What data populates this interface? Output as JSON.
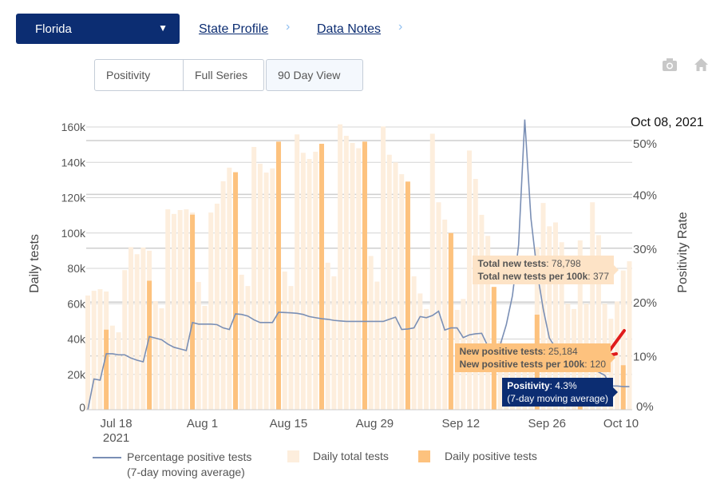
{
  "header": {
    "state_select": "Florida",
    "links": [
      "State Profile",
      "Data Notes"
    ],
    "view_buttons": [
      "Positivity",
      "Full Series",
      "90 Day View"
    ],
    "selected_view": "90 Day View",
    "icons": [
      "camera-icon",
      "home-icon"
    ]
  },
  "tooltip": {
    "date": "Oct 08, 2021",
    "total_label": "Total new tests",
    "total_value": "78,798",
    "total_100k_label": "Total new tests per 100k",
    "total_100k_value": "377",
    "pos_label": "New positive tests",
    "pos_value": "25,184",
    "pos_100k_label": "New positive tests per 100k",
    "pos_100k_value": "120",
    "positivity_label": "Positivity",
    "positivity_value": "4.3%",
    "positivity_note": "(7-day moving average)"
  },
  "colors": {
    "total": "#fdeedd",
    "positive": "#fdc27e",
    "line": "#7a8fb5",
    "brand": "#0c2d72",
    "arrow": "#e01b1b"
  },
  "chart_data": {
    "type": "bar+line",
    "start_date": "2021-07-13",
    "end_date": "2021-10-10",
    "xticks": [
      "Jul 18\n2021",
      "Aug 1",
      "Aug 15",
      "Aug 29",
      "Sep 12",
      "Sep 26",
      "Oct 10"
    ],
    "xtick_dates": [
      "2021-07-18",
      "2021-08-01",
      "2021-08-15",
      "2021-08-29",
      "2021-09-12",
      "2021-09-26",
      "2021-10-10"
    ],
    "ylabel": "Daily tests",
    "y2label": "Positivity Rate",
    "ylim": [
      0,
      160000
    ],
    "y2lim": [
      0,
      50
    ],
    "yticks": [
      "0",
      "20k",
      "40k",
      "60k",
      "80k",
      "100k",
      "120k",
      "140k",
      "160k"
    ],
    "y2ticks": [
      "0%",
      "10%",
      "20%",
      "30%",
      "40%",
      "50%"
    ],
    "grid": true,
    "legend_position": "bottom",
    "series": [
      {
        "name": "Daily total tests",
        "type": "bar",
        "values": [
          64600,
          67300,
          68200,
          66900,
          47600,
          43800,
          79000,
          92000,
          88000,
          91800,
          90000,
          61500,
          57400,
          113400,
          110800,
          113000,
          113400,
          111600,
          72300,
          58800,
          111600,
          116600,
          129300,
          137000,
          134400,
          76400,
          70000,
          148700,
          139200,
          134200,
          136600,
          151700,
          78200,
          70000,
          155800,
          145400,
          141900,
          146000,
          150500,
          83200,
          75500,
          161500,
          155000,
          151000,
          148000,
          151700,
          87000,
          72500,
          160300,
          144300,
          140000,
          133300,
          129100,
          75500,
          65800,
          57000,
          156200,
          117400,
          107600,
          100000,
          56500,
          62700,
          146700,
          130600,
          110300,
          98400,
          69500,
          39000,
          30000,
          30000,
          30000,
          30000,
          30000,
          92000,
          117000,
          103800,
          106000,
          94800,
          60000,
          57000,
          95800,
          60000,
          117400,
          98800,
          60000,
          51500,
          61300,
          78798,
          84000,
          86500
        ]
      },
      {
        "name": "Daily positive tests",
        "type": "bar",
        "values": [
          0,
          0,
          0,
          45300,
          0,
          0,
          0,
          0,
          0,
          0,
          73000,
          0,
          0,
          0,
          0,
          0,
          0,
          110400,
          0,
          0,
          0,
          0,
          0,
          0,
          134400,
          0,
          0,
          0,
          0,
          0,
          0,
          151700,
          0,
          0,
          0,
          0,
          0,
          0,
          150500,
          0,
          0,
          0,
          0,
          0,
          0,
          151700,
          0,
          0,
          0,
          0,
          0,
          0,
          129100,
          0,
          0,
          0,
          0,
          0,
          0,
          100000,
          0,
          0,
          0,
          0,
          0,
          0,
          69500,
          0,
          0,
          0,
          0,
          0,
          0,
          53800,
          0,
          0,
          0,
          0,
          0,
          0,
          2000,
          0,
          0,
          0,
          0,
          0,
          0,
          25184,
          0,
          0
        ]
      },
      {
        "name": "Percentage positive tests\n(7-day moving average)",
        "type": "line",
        "axis": "right",
        "values": [
          0,
          5.7,
          5.5,
          10.4,
          10.4,
          10.2,
          10.2,
          9.6,
          9.2,
          8.9,
          13.6,
          13.3,
          13,
          12.2,
          11.6,
          11.3,
          11,
          16.2,
          15.9,
          15.9,
          15.9,
          15.8,
          15.2,
          14.9,
          17.8,
          17.7,
          17.4,
          16.7,
          16.2,
          16.2,
          16.2,
          18.1,
          18.05,
          18,
          17.9,
          17.7,
          17.3,
          17.1,
          16.9,
          16.8,
          16.6,
          16.5,
          16.4,
          16.4,
          16.4,
          16.4,
          16.4,
          16.4,
          16.4,
          16.8,
          17.2,
          14.9,
          15,
          15.2,
          17.3,
          17.1,
          17.5,
          18.3,
          14.8,
          15.2,
          15.2,
          13.4,
          13.9,
          14.1,
          14.2,
          11.8,
          11.5,
          12,
          15.8,
          21.2,
          30.6,
          53.9,
          35.6,
          25.7,
          18.7,
          13.3,
          11.5,
          10.5,
          9.8,
          9.2,
          8.8,
          8.2,
          7.6,
          7,
          6.4,
          4.4,
          4.4,
          4.3,
          4.3,
          4.3
        ]
      }
    ],
    "legend": [
      "Percentage positive tests",
      "(7-day moving average)",
      "Daily total tests",
      "Daily positive tests"
    ]
  }
}
